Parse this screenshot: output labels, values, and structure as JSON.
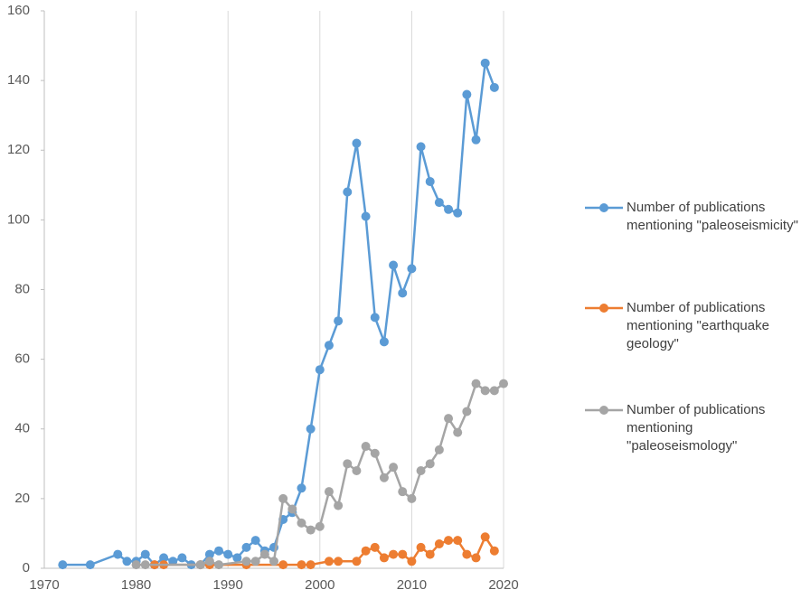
{
  "chart_data": {
    "type": "line",
    "xlim": [
      1970,
      2020
    ],
    "xticks": [
      1970,
      1980,
      1990,
      2000,
      2010,
      2020
    ],
    "ylim": [
      0,
      160
    ],
    "yticks": [
      0,
      20,
      40,
      60,
      80,
      100,
      120,
      140,
      160
    ],
    "grid": true,
    "legend": "right",
    "series": [
      {
        "name": "Number of publications mentioning \"paleoseismicity\"",
        "color": "#5b9bd5",
        "x": [
          1972,
          1975,
          1978,
          1979,
          1980,
          1981,
          1982,
          1983,
          1984,
          1985,
          1986,
          1987,
          1988,
          1989,
          1990,
          1991,
          1992,
          1993,
          1994,
          1995,
          1996,
          1997,
          1998,
          1999,
          2000,
          2001,
          2002,
          2003,
          2004,
          2005,
          2006,
          2007,
          2008,
          2009,
          2010,
          2011,
          2012,
          2013,
          2014,
          2015,
          2016,
          2017,
          2018,
          2019
        ],
        "values": [
          1,
          1,
          4,
          2,
          2,
          4,
          1,
          3,
          2,
          3,
          1,
          1,
          4,
          5,
          4,
          3,
          6,
          8,
          5,
          6,
          14,
          16,
          23,
          40,
          57,
          64,
          71,
          108,
          122,
          101,
          72,
          65,
          87,
          79,
          86,
          121,
          111,
          105,
          103,
          102,
          136,
          123,
          145,
          138
        ]
      },
      {
        "name": "Number of publications mentioning \"earthquake geology\"",
        "color": "#ed7d31",
        "x": [
          1982,
          1983,
          1987,
          1988,
          1992,
          1996,
          1998,
          1999,
          2001,
          2002,
          2004,
          2005,
          2006,
          2007,
          2008,
          2009,
          2010,
          2011,
          2012,
          2013,
          2014,
          2015,
          2016,
          2017,
          2018,
          2019
        ],
        "values": [
          1,
          1,
          1,
          1,
          1,
          1,
          1,
          1,
          2,
          2,
          2,
          5,
          6,
          3,
          4,
          4,
          2,
          6,
          4,
          7,
          8,
          8,
          4,
          3,
          9,
          5
        ]
      },
      {
        "name": "Number of publications mentioning \"paleoseismology\"",
        "color": "#a5a5a5",
        "x": [
          1980,
          1981,
          1987,
          1988,
          1989,
          1992,
          1993,
          1994,
          1995,
          1996,
          1997,
          1998,
          1999,
          2000,
          2001,
          2002,
          2003,
          2004,
          2005,
          2006,
          2007,
          2008,
          2009,
          2010,
          2011,
          2012,
          2013,
          2014,
          2015,
          2016,
          2017,
          2018,
          2019,
          2020
        ],
        "values": [
          1,
          1,
          1,
          2,
          1,
          2,
          2,
          4,
          2,
          20,
          17,
          13,
          11,
          12,
          22,
          18,
          30,
          28,
          35,
          33,
          26,
          29,
          22,
          20,
          28,
          30,
          34,
          43,
          39,
          45,
          53,
          51,
          51,
          53
        ]
      }
    ]
  }
}
